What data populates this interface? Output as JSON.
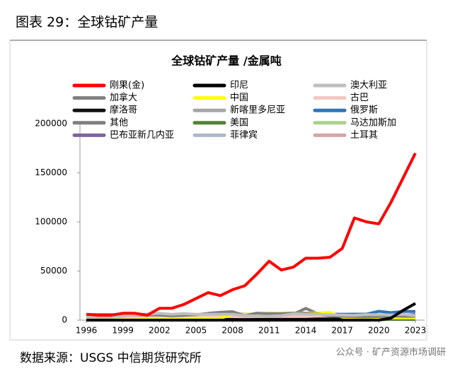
{
  "header": "图表 29：全球钴矿产量",
  "source": "数据来源：USGS 中信期货研究所",
  "watermark": "公众号 · 矿产资源市场调研",
  "chart_data": {
    "type": "line",
    "title": "全球钴矿产量 /金属吨",
    "x": [
      1996,
      1997,
      1998,
      1999,
      2000,
      2001,
      2002,
      2003,
      2004,
      2005,
      2006,
      2007,
      2008,
      2009,
      2010,
      2011,
      2012,
      2013,
      2014,
      2015,
      2016,
      2017,
      2018,
      2019,
      2020,
      2021,
      2022,
      2023
    ],
    "xlim": [
      1996,
      2023
    ],
    "xticks": [
      1996,
      1999,
      2002,
      2005,
      2008,
      2011,
      2014,
      2017,
      2020,
      2023
    ],
    "ylim": [
      0,
      200000
    ],
    "yticks": [
      0,
      50000,
      100000,
      150000,
      200000
    ],
    "series": [
      {
        "name": "刚果(金)",
        "color": "#ff0000",
        "values": [
          6000,
          5000,
          5000,
          7000,
          7000,
          5000,
          12000,
          12000,
          16000,
          22000,
          28000,
          25000,
          31000,
          35000,
          47000,
          60000,
          51000,
          54000,
          63000,
          63000,
          64000,
          73000,
          104000,
          100000,
          98000,
          120000,
          145000,
          170000
        ]
      },
      {
        "name": "印尼",
        "color": "#000000",
        "values": [
          0,
          0,
          0,
          0,
          0,
          0,
          0,
          0,
          0,
          0,
          0,
          0,
          0,
          0,
          0,
          0,
          0,
          0,
          0,
          0,
          0,
          0,
          0,
          0,
          0,
          2100,
          10000,
          17000
        ]
      },
      {
        "name": "澳大利亚",
        "color": "#bfbfbf",
        "values": [
          3000,
          3000,
          3000,
          4100,
          5600,
          6200,
          6900,
          6000,
          6700,
          6000,
          6000,
          6000,
          6000,
          4600,
          4000,
          3900,
          4500,
          6500,
          6000,
          6000,
          5500,
          5100,
          4900,
          5700,
          5600,
          5300,
          5800,
          4600
        ]
      },
      {
        "name": "加拿大",
        "color": "#808080",
        "values": [
          5700,
          5700,
          5700,
          5300,
          5300,
          5300,
          5100,
          4300,
          5000,
          5500,
          7000,
          8000,
          8600,
          4600,
          7100,
          6600,
          6700,
          7100,
          6900,
          6300,
          4300,
          3900,
          3500,
          3300,
          3700,
          4300,
          3900,
          3900
        ]
      },
      {
        "name": "中国",
        "color": "#ffff00",
        "values": [
          200,
          200,
          500,
          300,
          300,
          1200,
          1500,
          1300,
          1300,
          1800,
          1800,
          1800,
          6000,
          6000,
          6500,
          7000,
          7000,
          7200,
          7200,
          7200,
          7700,
          3100,
          2100,
          2500,
          2300,
          2200,
          2200,
          2200
        ]
      },
      {
        "name": "古巴",
        "color": "#f4c7c3",
        "values": [
          2000,
          2000,
          2000,
          2100,
          2900,
          3400,
          3400,
          3600,
          3600,
          3500,
          3700,
          3800,
          3500,
          3500,
          3600,
          3700,
          3700,
          3700,
          3700,
          4200,
          4200,
          4800,
          3500,
          3500,
          3800,
          4000,
          3800,
          3500
        ]
      },
      {
        "name": "摩洛哥",
        "color": "#111111",
        "values": [
          1000,
          1000,
          1000,
          1100,
          1300,
          1300,
          1600,
          1300,
          1600,
          1600,
          1300,
          1600,
          1500,
          1500,
          1600,
          2000,
          2000,
          2000,
          2300,
          2100,
          2000,
          2000,
          2300,
          2100,
          1900,
          2300,
          2300,
          2200
        ]
      },
      {
        "name": "新喀里多尼亚",
        "color": "#a6a6a6",
        "values": [
          1000,
          1100,
          1000,
          1100,
          1200,
          1400,
          1400,
          1400,
          1400,
          1400,
          1600,
          1700,
          1600,
          1100,
          1700,
          2000,
          3000,
          3200,
          3900,
          4100,
          3500,
          2800,
          2100,
          2100,
          1400,
          2700,
          2900,
          2400
        ]
      },
      {
        "name": "俄罗斯",
        "color": "#2e75b6",
        "values": [
          5000,
          4500,
          4000,
          4000,
          4000,
          4600,
          4600,
          4800,
          4700,
          5000,
          6300,
          6300,
          6200,
          6100,
          6200,
          6300,
          6300,
          6300,
          6000,
          6300,
          6200,
          5900,
          6100,
          6100,
          9000,
          7600,
          8900,
          8800
        ]
      },
      {
        "name": "其他",
        "color": "#7f7f7f",
        "values": [
          2500,
          2800,
          3200,
          3000,
          3100,
          2900,
          3300,
          4100,
          4000,
          4200,
          4300,
          5000,
          5500,
          5300,
          6000,
          6000,
          6100,
          6000,
          12000,
          6500,
          5600,
          5900,
          5700,
          4800,
          5000,
          5000,
          5000,
          6000
        ]
      },
      {
        "name": "美国",
        "color": "#548235",
        "values": [
          0,
          0,
          0,
          0,
          0,
          0,
          0,
          0,
          0,
          0,
          0,
          0,
          0,
          0,
          0,
          0,
          0,
          0,
          120,
          760,
          690,
          640,
          490,
          500,
          600,
          650,
          800,
          500
        ]
      },
      {
        "name": "马达加斯加",
        "color": "#a9d18e",
        "values": [
          0,
          0,
          0,
          0,
          0,
          0,
          0,
          0,
          0,
          0,
          0,
          0,
          0,
          0,
          0,
          0,
          150,
          2800,
          3800,
          4000,
          3800,
          3500,
          3300,
          3400,
          850,
          2800,
          3000,
          4000
        ]
      },
      {
        "name": "巴布亚新几内亚",
        "color": "#8064a2",
        "values": [
          0,
          0,
          0,
          0,
          0,
          0,
          0,
          0,
          0,
          0,
          0,
          0,
          0,
          0,
          0,
          0,
          100,
          1500,
          2900,
          2500,
          2800,
          3200,
          3300,
          3000,
          2900,
          3000,
          3000,
          3000
        ]
      },
      {
        "name": "菲律宾",
        "color": "#adb9ca",
        "values": [
          0,
          0,
          0,
          0,
          0,
          0,
          0,
          0,
          0,
          0,
          0,
          500,
          900,
          1300,
          1700,
          2000,
          3700,
          4100,
          4100,
          4600,
          4100,
          4600,
          4600,
          5100,
          4500,
          4500,
          3800,
          3800
        ]
      },
      {
        "name": "土耳其",
        "color": "#d6a5a5",
        "values": [
          0,
          0,
          0,
          0,
          0,
          0,
          0,
          0,
          0,
          0,
          0,
          0,
          0,
          0,
          0,
          0,
          0,
          0,
          0,
          0,
          0,
          0,
          0,
          300,
          1000,
          2100,
          2400,
          2700
        ]
      }
    ]
  }
}
